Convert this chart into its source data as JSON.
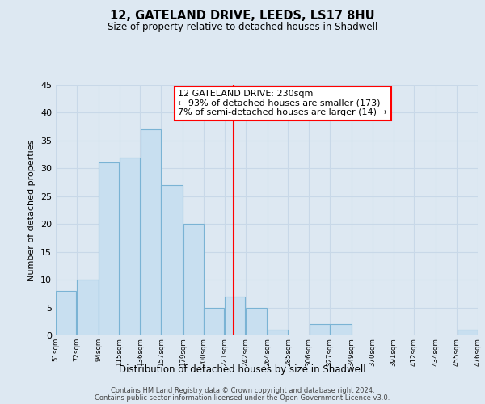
{
  "title": "12, GATELAND DRIVE, LEEDS, LS17 8HU",
  "subtitle": "Size of property relative to detached houses in Shadwell",
  "xlabel": "Distribution of detached houses by size in Shadwell",
  "ylabel": "Number of detached properties",
  "bar_left_edges": [
    51,
    72,
    94,
    115,
    136,
    157,
    179,
    200,
    221,
    242,
    264,
    285,
    306,
    327,
    349,
    370,
    391,
    412,
    434,
    455
  ],
  "bar_widths": [
    21,
    22,
    21,
    21,
    21,
    22,
    21,
    21,
    21,
    22,
    21,
    21,
    21,
    22,
    21,
    21,
    21,
    22,
    21,
    21
  ],
  "bar_heights": [
    8,
    10,
    31,
    32,
    37,
    27,
    20,
    5,
    7,
    5,
    1,
    0,
    2,
    2,
    0,
    0,
    0,
    0,
    0,
    1
  ],
  "tick_labels": [
    "51sqm",
    "72sqm",
    "94sqm",
    "115sqm",
    "136sqm",
    "157sqm",
    "179sqm",
    "200sqm",
    "221sqm",
    "242sqm",
    "264sqm",
    "285sqm",
    "306sqm",
    "327sqm",
    "349sqm",
    "370sqm",
    "391sqm",
    "412sqm",
    "434sqm",
    "455sqm",
    "476sqm"
  ],
  "bar_color": "#c8dff0",
  "bar_edge_color": "#7ab3d4",
  "vline_x": 230,
  "vline_color": "red",
  "annotation_line1": "12 GATELAND DRIVE: 230sqm",
  "annotation_line2": "← 93% of detached houses are smaller (173)",
  "annotation_line3": "7% of semi-detached houses are larger (14) →",
  "ylim": [
    0,
    45
  ],
  "yticks": [
    0,
    5,
    10,
    15,
    20,
    25,
    30,
    35,
    40,
    45
  ],
  "grid_color": "#c8d8e8",
  "background_color": "#dde8f2",
  "plot_bg_color": "#dde8f2",
  "footer_line1": "Contains HM Land Registry data © Crown copyright and database right 2024.",
  "footer_line2": "Contains public sector information licensed under the Open Government Licence v3.0."
}
